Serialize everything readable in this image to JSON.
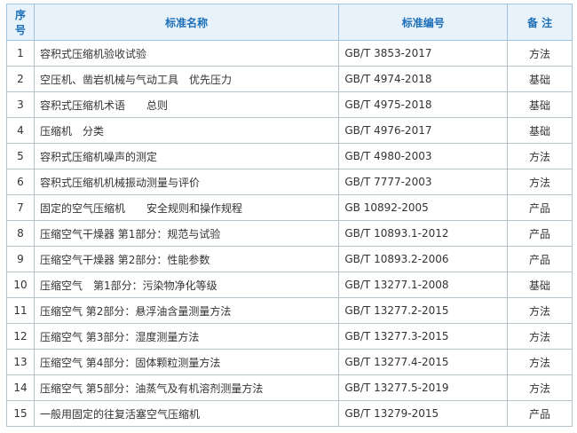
{
  "table": {
    "header": [
      "序号",
      "标准名称",
      "标准编号",
      "备 注"
    ],
    "rows": [
      [
        "1",
        "容积式压缩机验收试验",
        "GB/T 3853-2017",
        "方法"
      ],
      [
        "2",
        "空压机、凿岩机械与气动工具　优先压力",
        "GB/T 4974-2018",
        "基础"
      ],
      [
        "3",
        "容积式压缩机术语　　总则",
        "GB/T 4975-2018",
        "基础"
      ],
      [
        "4",
        "压缩机　分类",
        "GB/T 4976-2017",
        "基础"
      ],
      [
        "5",
        "容积式压缩机噪声的测定",
        "GB/T 4980-2003",
        "方法"
      ],
      [
        "6",
        "容积式压缩机机械振动测量与评价",
        "GB/T 7777-2003",
        "方法"
      ],
      [
        "7",
        "固定的空气压缩机　　安全规则和操作规程",
        "GB 10892-2005",
        "产品"
      ],
      [
        "8",
        "压缩空气干燥器 第1部分：规范与试验",
        "GB/T 10893.1-2012",
        "产品"
      ],
      [
        "9",
        "压缩空气干燥器 第2部分：性能参数",
        "GB/T 10893.2-2006",
        "产品"
      ],
      [
        "10",
        "压缩空气　第1部分：污染物净化等级",
        "GB/T 13277.1-2008",
        "基础"
      ],
      [
        "11",
        "压缩空气 第2部分：悬浮油含量测量方法",
        "GB/T 13277.2-2015",
        "方法"
      ],
      [
        "12",
        "压缩空气 第3部分：湿度测量方法",
        "GB/T 13277.3-2015",
        "方法"
      ],
      [
        "13",
        "压缩空气 第4部分：固体颗粒测量方法",
        "GB/T 13277.4-2015",
        "方法"
      ],
      [
        "14",
        "压缩空气 第5部分：油蒸气及有机溶剂测量方法",
        "GB/T 13277.5-2019",
        "方法"
      ],
      [
        "15",
        "一般用固定的往复活塞空气压缩机",
        "GB/T 13279-2015",
        "产品"
      ]
    ]
  }
}
